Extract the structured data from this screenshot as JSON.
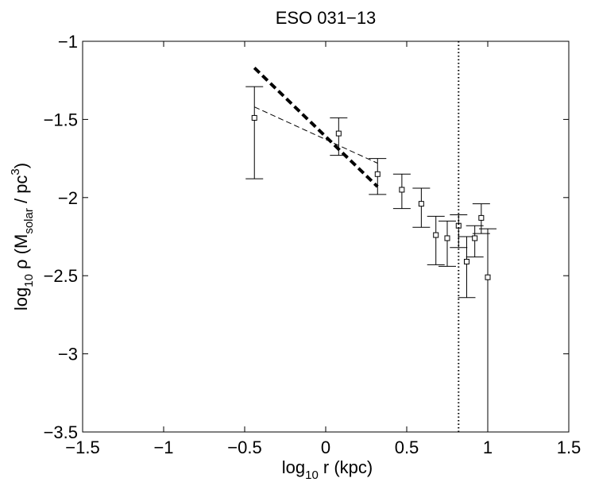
{
  "chart_data": {
    "type": "scatter",
    "title": "ESO 031−13",
    "xlabel": {
      "pre": "log",
      "sub": "10",
      "post": " r (kpc)"
    },
    "ylabel": {
      "pre": "log",
      "sub": "10",
      "mid": " ρ (M",
      "sub2": "solar",
      "mid2": " / pc",
      "sup": "3",
      "post": ")"
    },
    "xlim": [
      -1.5,
      1.5
    ],
    "ylim": [
      -3.5,
      -1
    ],
    "xticks": [
      -1.5,
      -1,
      -0.5,
      0,
      0.5,
      1,
      1.5
    ],
    "yticks": [
      -3.5,
      -3,
      -2.5,
      -2,
      -1.5,
      -1
    ],
    "xtick_labels": [
      "−1.5",
      "−1",
      "−0.5",
      "0",
      "0.5",
      "1",
      "1.5"
    ],
    "ytick_labels": [
      "−3.5",
      "−3",
      "−2.5",
      "−2",
      "−1.5",
      "−1"
    ],
    "grid": false,
    "points": [
      {
        "x": -0.44,
        "y": -1.49,
        "ylow": -1.88,
        "yhigh": -1.29
      },
      {
        "x": 0.08,
        "y": -1.59,
        "ylow": -1.73,
        "yhigh": -1.49
      },
      {
        "x": 0.32,
        "y": -1.85,
        "ylow": -1.98,
        "yhigh": -1.75
      },
      {
        "x": 0.47,
        "y": -1.95,
        "ylow": -2.07,
        "yhigh": -1.85
      },
      {
        "x": 0.59,
        "y": -2.04,
        "ylow": -2.19,
        "yhigh": -1.94
      },
      {
        "x": 0.68,
        "y": -2.24,
        "ylow": -2.43,
        "yhigh": -2.12
      },
      {
        "x": 0.75,
        "y": -2.26,
        "ylow": -2.44,
        "yhigh": -2.15
      },
      {
        "x": 0.82,
        "y": -2.18,
        "ylow": -2.32,
        "yhigh": -2.11
      },
      {
        "x": 0.87,
        "y": -2.41,
        "ylow": -2.64,
        "yhigh": -2.25
      },
      {
        "x": 0.92,
        "y": -2.26,
        "ylow": -2.38,
        "yhigh": -2.18
      },
      {
        "x": 0.96,
        "y": -2.13,
        "ylow": -2.23,
        "yhigh": -2.04
      },
      {
        "x": 1.0,
        "y": -2.51,
        "ylow": -3.5,
        "yhigh": -2.2
      }
    ],
    "fit_lines": [
      {
        "style": "thick-dashed",
        "x": [
          -0.44,
          0.32
        ],
        "y": [
          -1.17,
          -1.93
        ]
      },
      {
        "style": "thin-dashed",
        "x": [
          -0.44,
          0.32
        ],
        "y": [
          -1.42,
          -1.78
        ]
      }
    ],
    "vertical_line": {
      "style": "dotted",
      "x": 0.82
    }
  }
}
